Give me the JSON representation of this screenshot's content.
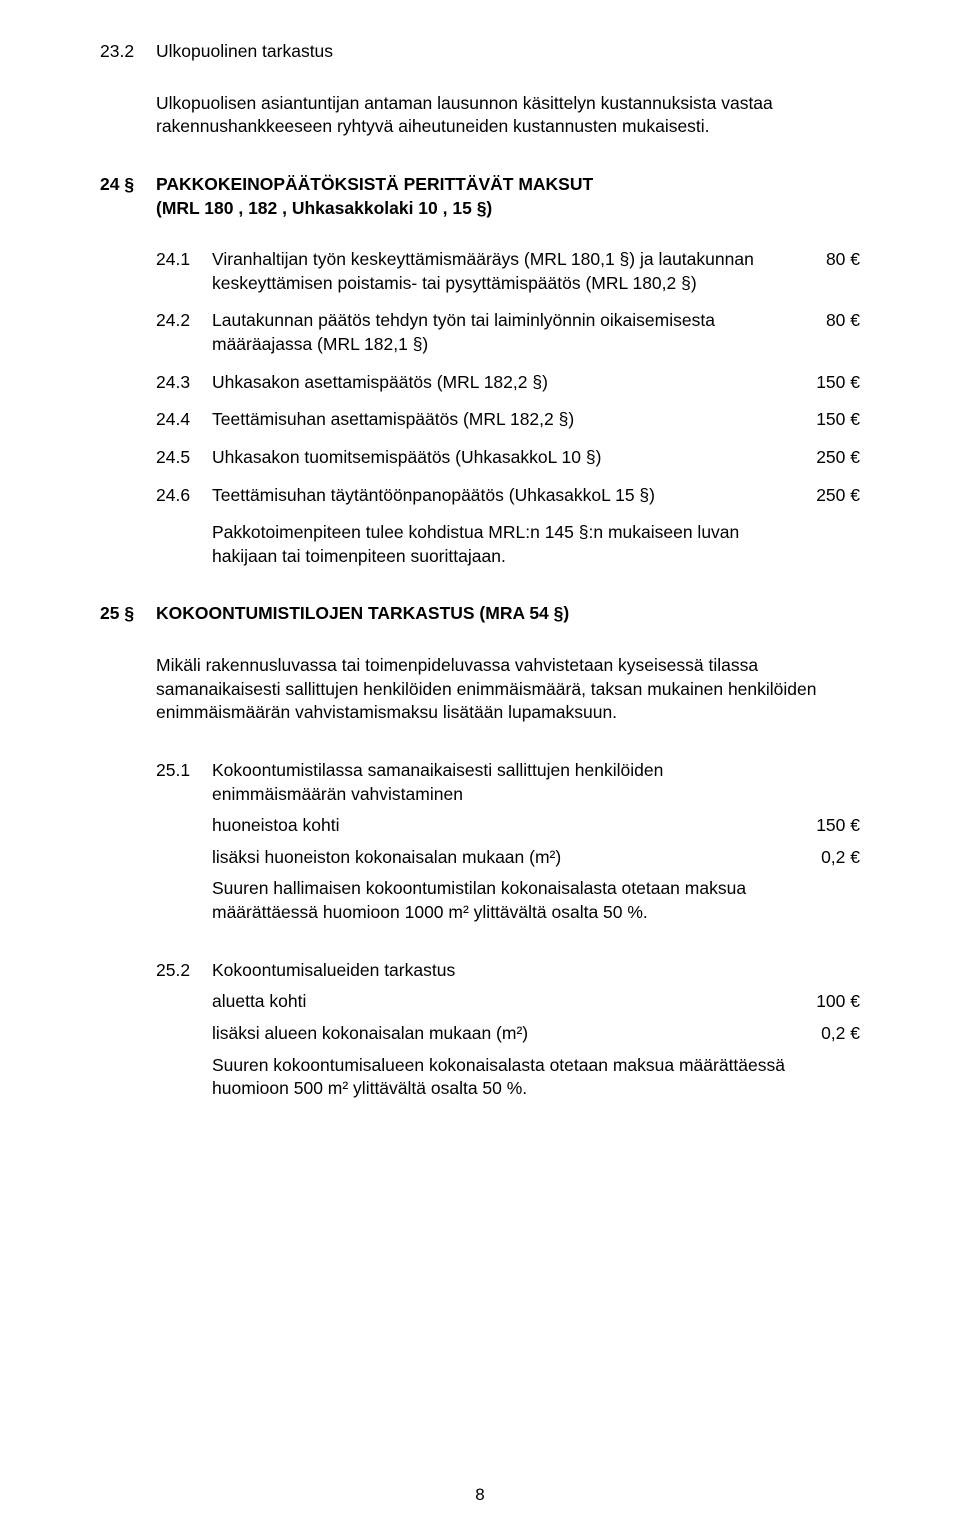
{
  "doc": {
    "background_color": "#ffffff",
    "text_color": "#000000",
    "font_family": "Arial",
    "base_fontsize_pt": 13
  },
  "s23_2": {
    "num": "23.2",
    "title": "Ulkopuolinen tarkastus",
    "body": "Ulkopuolisen asiantuntijan antaman lausunnon käsittelyn kustannuksista vastaa rakennushankkeeseen ryhtyvä aiheutuneiden kustannusten mukaisesti."
  },
  "s24": {
    "num": "24 §",
    "title_l1": "PAKKOKEINOPÄÄTÖKSISTÄ PERITTÄVÄT MAKSUT",
    "title_l2": "(MRL 180 , 182 , Uhkasakkolaki 10 , 15 §)",
    "items": [
      {
        "num": "24.1",
        "text": "Viranhaltijan työn keskeyttämismääräys (MRL 180,1 §) ja lautakunnan keskeyttämisen poistamis- tai pysyttämispäätös (MRL 180,2 §)",
        "amount": "80 €"
      },
      {
        "num": "24.2",
        "text": "Lautakunnan päätös tehdyn työn tai laiminlyönnin oikaisemisesta määräajassa (MRL 182,1 §)",
        "amount": "80 €"
      },
      {
        "num": "24.3",
        "text": "Uhkasakon asettamispäätös (MRL 182,2 §)",
        "amount": "150 €"
      },
      {
        "num": "24.4",
        "text": "Teettämisuhan asettamispäätös (MRL 182,2 §)",
        "amount": "150 €"
      },
      {
        "num": "24.5",
        "text": "Uhkasakon tuomitsemispäätös (UhkasakkoL 10 §)",
        "amount": "250 €"
      },
      {
        "num": "24.6",
        "text": "Teettämisuhan täytäntöönpanopäätös (UhkasakkoL 15 §)",
        "amount": "250 €"
      }
    ],
    "footer": "Pakkotoimenpiteen tulee kohdistua MRL:n 145 §:n mukaiseen luvan hakijaan tai toimenpiteen suorittajaan."
  },
  "s25": {
    "num": "25 §",
    "title": "KOKOONTUMISTILOJEN TARKASTUS (MRA 54 §)",
    "intro": "Mikäli rakennusluvassa tai toimenpideluvassa vahvistetaan kyseisessä tilassa samanaikaisesti sallittujen henkilöiden enimmäismäärä, taksan mukainen henkilöiden enimmäismäärän vahvistamismaksu lisätään lupamaksuun.",
    "item1": {
      "num": "25.1",
      "heading_l1": "Kokoontumistilassa samanaikaisesti sallittujen henkilöiden",
      "heading_l2": "enimmäismäärän vahvistaminen",
      "row1_label": "huoneistoa kohti",
      "row1_amount": "150 €",
      "row2_label": "lisäksi huoneiston kokonaisalan mukaan (m²)",
      "row2_amount": "0,2 €",
      "note": "Suuren hallimaisen kokoontumistilan kokonaisalasta otetaan maksua määrättäessä huomioon 1000 m² ylittävältä osalta 50 %."
    },
    "item2": {
      "num": "25.2",
      "heading": "Kokoontumisalueiden tarkastus",
      "row1_label": "aluetta kohti",
      "row1_amount": "100 €",
      "row2_label": "lisäksi alueen kokonaisalan mukaan (m²)",
      "row2_amount": "0,2 €",
      "note": "Suuren kokoontumisalueen kokonaisalasta otetaan maksua määrättäessä huomioon 500 m² ylittävältä osalta 50 %."
    }
  },
  "page_number": "8"
}
